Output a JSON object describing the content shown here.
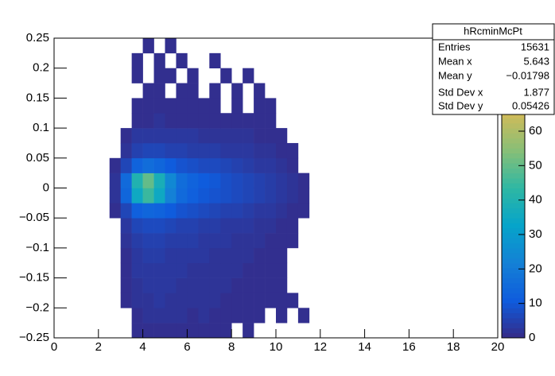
{
  "chart_data": {
    "type": "heatmap",
    "title": "hRcminMcPt",
    "xbins": [
      2.5,
      3,
      3.5,
      4,
      4.5,
      5,
      5.5,
      6,
      6.5,
      7,
      7.5,
      8,
      8.5,
      9,
      9.5,
      10,
      10.5,
      11,
      11.5,
      12
    ],
    "ybins": [
      -0.25,
      -0.225,
      -0.2,
      -0.175,
      -0.15,
      -0.125,
      -0.1,
      -0.075,
      -0.05,
      -0.025,
      0,
      0.025,
      0.05,
      0.075,
      0.1,
      0.125,
      0.15,
      0.175,
      0.2,
      0.225,
      0.25
    ],
    "z": [
      [
        0,
        0,
        1,
        1,
        1,
        1,
        1,
        1,
        1,
        1,
        1,
        0,
        1,
        0,
        0,
        0,
        0,
        0,
        0
      ],
      [
        0,
        0,
        1,
        2,
        2,
        2,
        2,
        1,
        2,
        1,
        1,
        1,
        1,
        1,
        0,
        1,
        0,
        1,
        0
      ],
      [
        0,
        1,
        2,
        2,
        3,
        2,
        2,
        2,
        2,
        2,
        1,
        1,
        1,
        1,
        1,
        1,
        1,
        0,
        0
      ],
      [
        0,
        1,
        2,
        3,
        3,
        3,
        2,
        2,
        2,
        2,
        2,
        1,
        1,
        1,
        1,
        1,
        0,
        0,
        0
      ],
      [
        0,
        1,
        3,
        3,
        3,
        3,
        3,
        2,
        2,
        2,
        2,
        2,
        1,
        1,
        1,
        1,
        0,
        0,
        0
      ],
      [
        0,
        1,
        3,
        4,
        4,
        3,
        3,
        3,
        3,
        2,
        2,
        2,
        2,
        1,
        1,
        1,
        0,
        0,
        0
      ],
      [
        0,
        2,
        4,
        5,
        5,
        4,
        4,
        4,
        3,
        3,
        3,
        2,
        2,
        2,
        1,
        1,
        1,
        0,
        0
      ],
      [
        0,
        3,
        6,
        7,
        7,
        6,
        5,
        5,
        4,
        4,
        3,
        3,
        3,
        2,
        2,
        1,
        1,
        0,
        0
      ],
      [
        1,
        6,
        12,
        14,
        13,
        11,
        9,
        8,
        7,
        6,
        5,
        5,
        4,
        3,
        3,
        2,
        1,
        1,
        0
      ],
      [
        2,
        14,
        35,
        45,
        35,
        22,
        15,
        12,
        10,
        9,
        8,
        7,
        6,
        5,
        4,
        3,
        2,
        1,
        0
      ],
      [
        2,
        15,
        40,
        50,
        38,
        24,
        16,
        13,
        11,
        10,
        8,
        7,
        6,
        5,
        4,
        3,
        2,
        1,
        0
      ],
      [
        1,
        6,
        13,
        16,
        14,
        11,
        9,
        8,
        7,
        7,
        6,
        5,
        4,
        3,
        3,
        2,
        1,
        0,
        0
      ],
      [
        0,
        2,
        5,
        6,
        6,
        5,
        5,
        4,
        4,
        4,
        3,
        3,
        3,
        2,
        2,
        1,
        1,
        0,
        0
      ],
      [
        0,
        1,
        3,
        3,
        3,
        3,
        3,
        3,
        2,
        2,
        2,
        2,
        2,
        1,
        1,
        1,
        0,
        0,
        0
      ],
      [
        0,
        0,
        1,
        1,
        2,
        1,
        1,
        1,
        1,
        1,
        1,
        1,
        1,
        1,
        1,
        0,
        0,
        0,
        0
      ],
      [
        0,
        0,
        1,
        1,
        1,
        1,
        1,
        1,
        1,
        1,
        0,
        1,
        0,
        1,
        1,
        0,
        0,
        0,
        0
      ],
      [
        0,
        0,
        0,
        1,
        1,
        0,
        1,
        1,
        0,
        1,
        0,
        1,
        0,
        1,
        0,
        0,
        0,
        0,
        0
      ],
      [
        0,
        0,
        1,
        0,
        1,
        1,
        0,
        1,
        0,
        0,
        1,
        0,
        1,
        0,
        0,
        0,
        0,
        0,
        0
      ],
      [
        0,
        0,
        1,
        0,
        1,
        0,
        1,
        0,
        0,
        1,
        0,
        0,
        0,
        0,
        0,
        0,
        0,
        0,
        0
      ],
      [
        0,
        0,
        0,
        1,
        0,
        1,
        0,
        0,
        0,
        0,
        0,
        0,
        0,
        0,
        0,
        0,
        0,
        0,
        0
      ]
    ],
    "xlim": [
      0,
      20
    ],
    "xticks": [
      0,
      2,
      4,
      6,
      8,
      10,
      12,
      14,
      16,
      18,
      20
    ],
    "ylim": [
      -0.25,
      0.25
    ],
    "yticks": [
      0.25,
      0.2,
      0.15,
      0.1,
      0.05,
      0,
      {
        "value": -0.05,
        "label": "−0.05"
      },
      {
        "value": -0.1,
        "label": "−0.1"
      },
      {
        "value": -0.15,
        "label": "−0.15"
      },
      {
        "value": -0.2,
        "label": "−0.2"
      },
      {
        "value": -0.25,
        "label": "−0.25"
      }
    ],
    "zlim": [
      0,
      87
    ],
    "zticks": [
      0,
      10,
      20,
      30,
      40,
      50,
      60
    ],
    "stats": [
      {
        "name": "Entries",
        "value": 15631
      },
      {
        "name": "Mean x",
        "value": 5.643
      },
      {
        "name": "Mean y",
        "value": {
          "value": -0.01798,
          "label": "−0.01798"
        }
      },
      {
        "name": "Std Dev x",
        "value": 1.877
      },
      {
        "name": "Std Dev y",
        "value": 0.05426
      }
    ]
  }
}
